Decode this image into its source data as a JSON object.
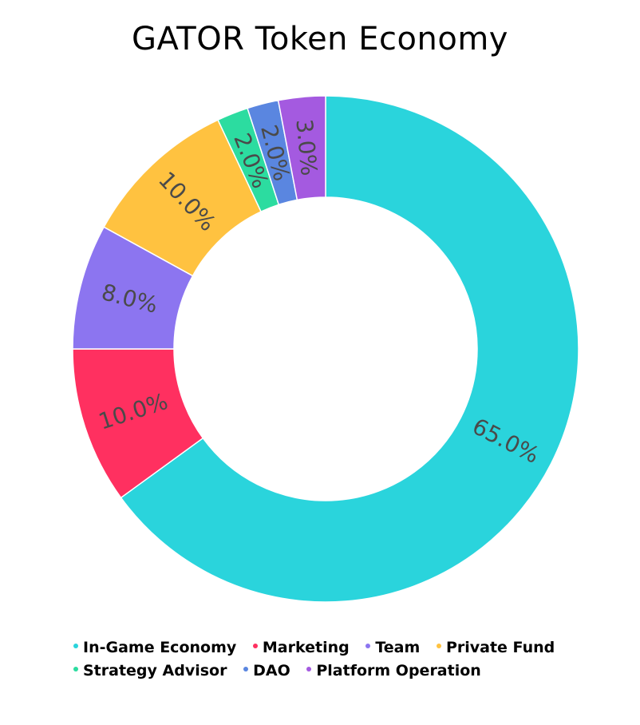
{
  "chart_data": {
    "type": "pie",
    "variant": "donut",
    "title": "GATOR Token Economy",
    "categories": [
      "In-Game Economy",
      "Marketing",
      "Team",
      "Private Fund",
      "Strategy Advisor",
      "DAO",
      "Platform Operation"
    ],
    "values": [
      65.0,
      10.0,
      8.0,
      10.0,
      2.0,
      2.0,
      3.0
    ],
    "labels": [
      "65.0%",
      "10.0%",
      "8.0%",
      "10.0%",
      "2.0%",
      "2.0%",
      "3.0%"
    ],
    "colors": [
      "#2ad4dc",
      "#ff3060",
      "#8c75f0",
      "#ffc240",
      "#2cdca0",
      "#5a86e0",
      "#a45ae0"
    ],
    "legend_position": "bottom"
  },
  "legend": [
    {
      "label": "In-Game Economy",
      "color": "#2ad4dc"
    },
    {
      "label": "Marketing",
      "color": "#ff3060"
    },
    {
      "label": "Team",
      "color": "#8c75f0"
    },
    {
      "label": "Private Fund",
      "color": "#ffc240"
    },
    {
      "label": "Strategy Advisor",
      "color": "#2cdca0"
    },
    {
      "label": "DAO",
      "color": "#5a86e0"
    },
    {
      "label": "Platform Operation",
      "color": "#a45ae0"
    }
  ]
}
